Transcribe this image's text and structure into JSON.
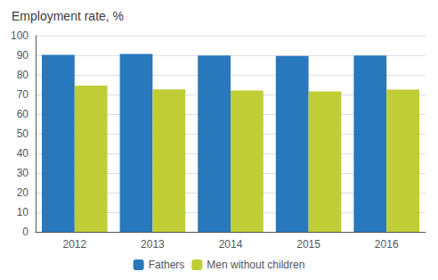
{
  "chart_data": {
    "type": "bar",
    "title": "Employment rate, %",
    "categories": [
      "2012",
      "2013",
      "2014",
      "2015",
      "2016"
    ],
    "series": [
      {
        "name": "Fathers",
        "color": "#2878BE",
        "values": [
          90.2,
          90.7,
          89.9,
          89.7,
          89.9
        ]
      },
      {
        "name": "Men without children",
        "color": "#BFCE35",
        "values": [
          74.5,
          72.6,
          72.0,
          71.6,
          72.5
        ]
      }
    ],
    "ylim": [
      0,
      100
    ],
    "yticks": [
      0,
      10,
      20,
      30,
      40,
      50,
      60,
      70,
      80,
      90,
      100
    ],
    "grid": true,
    "legend": "bottom"
  }
}
